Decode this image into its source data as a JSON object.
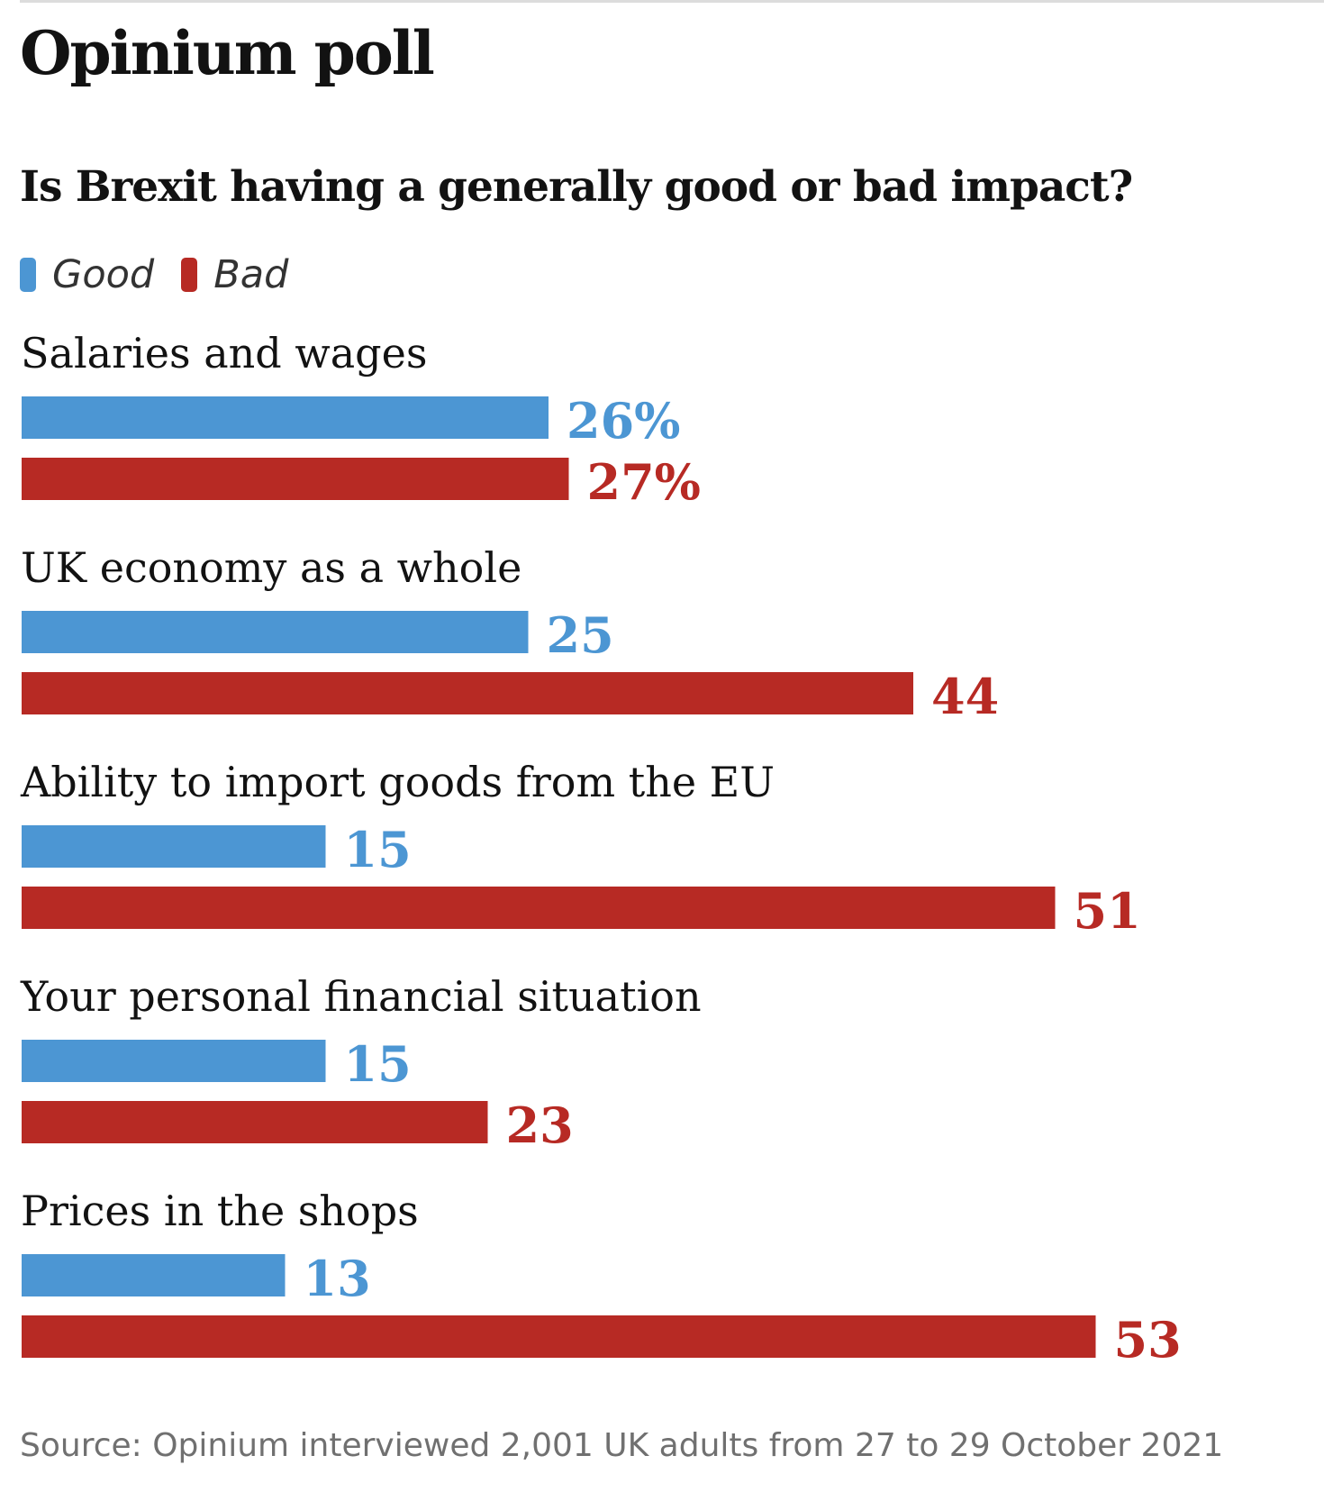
{
  "chart_data": {
    "type": "bar",
    "orientation": "horizontal",
    "title": "Opinium poll",
    "subtitle": "Is Brexit having a generally good or bad impact?",
    "categories": [
      "Salaries and wages",
      "UK economy as a whole",
      "Ability to import goods from the EU",
      "Your personal financial situation",
      "Prices in the shops"
    ],
    "series": [
      {
        "name": "Good",
        "color": "#4c96d3",
        "values": [
          26,
          25,
          15,
          15,
          13
        ],
        "labels": [
          "26%",
          "25",
          "15",
          "15",
          "13"
        ]
      },
      {
        "name": "Bad",
        "color": "#b72a24",
        "values": [
          27,
          44,
          51,
          23,
          53
        ],
        "labels": [
          "27%",
          "44",
          "51",
          "23",
          "53"
        ]
      }
    ],
    "xlim": [
      0,
      53
    ],
    "legend_position": "top-left",
    "grid": false,
    "source": "Source: Opinium interviewed 2,001 UK adults from 27 to 29 October 2021"
  }
}
